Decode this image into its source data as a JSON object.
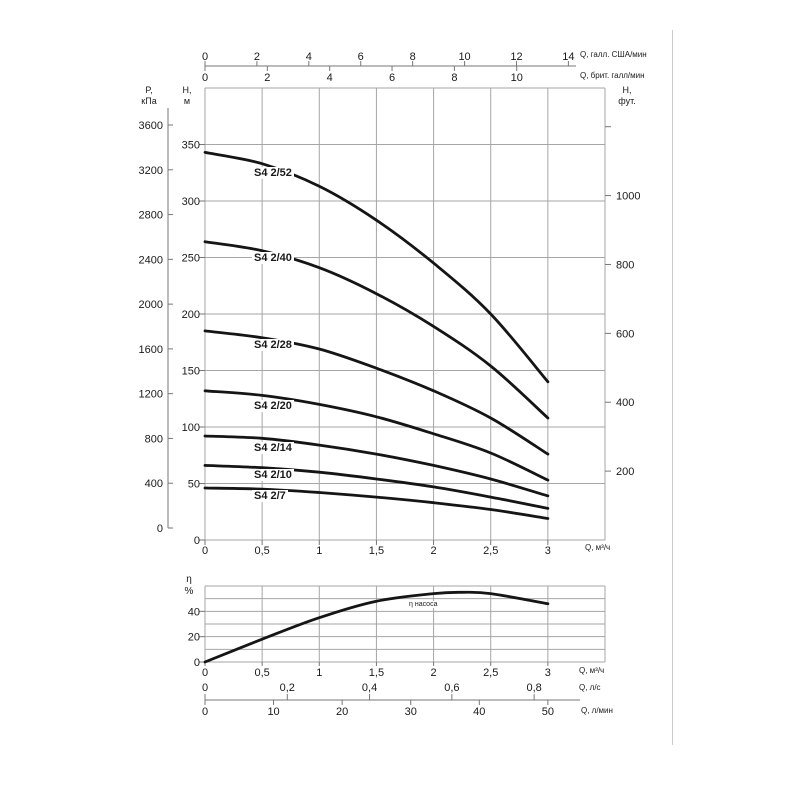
{
  "colors": {
    "curve": "#151515",
    "grid": "#a6a6a6",
    "axis": "#777777",
    "divider": "#cccccc",
    "text": "#1a1a1a"
  },
  "headers": {
    "kpa_line1": "P,",
    "kpa_line2": "кПа",
    "m_line1": "H,",
    "m_line2": "м",
    "ft_line1": "H,",
    "ft_line2": "фут.",
    "eta_line1": "η",
    "eta_line2": "%"
  },
  "annotations": {
    "eta_curve_label": "η насоса"
  },
  "chart_data": [
    {
      "type": "line",
      "name": "pump-head-curves",
      "x": [
        0,
        0.5,
        1,
        1.5,
        2,
        2.5,
        3
      ],
      "series": [
        {
          "name": "S4 2/52",
          "values": [
            343,
            333,
            313,
            283,
            245,
            200,
            140
          ]
        },
        {
          "name": "S4 2/40",
          "values": [
            264,
            256,
            241,
            218,
            189,
            154,
            108
          ]
        },
        {
          "name": "S4 2/28",
          "values": [
            185,
            179,
            169,
            152,
            132,
            108,
            76
          ]
        },
        {
          "name": "S4 2/20",
          "values": [
            132,
            128,
            120,
            109,
            94,
            77,
            53
          ]
        },
        {
          "name": "S4 2/14",
          "values": [
            92,
            90,
            84,
            76,
            66,
            54,
            39
          ]
        },
        {
          "name": "S4 2/10",
          "values": [
            66,
            64,
            60,
            54,
            47,
            38,
            28
          ]
        },
        {
          "name": "S4 2/7",
          "values": [
            46,
            45,
            42,
            38,
            33,
            27,
            19
          ]
        }
      ],
      "xlim": [
        0,
        3.5
      ],
      "ylim": [
        0,
        400
      ],
      "grid": {
        "x_step": 0.5,
        "y_step": 50
      },
      "axes": {
        "x_m3h": {
          "unit": "Q, м³/ч",
          "values": [
            0,
            0.5,
            1,
            1.5,
            2,
            2.5,
            3
          ],
          "labels": [
            "0",
            "0,5",
            "1",
            "1,5",
            "2",
            "2,5",
            "3"
          ]
        },
        "y_m": {
          "unit": "H, м",
          "values": [
            0,
            50,
            100,
            150,
            200,
            250,
            300,
            350
          ],
          "labels": [
            "0",
            "50",
            "100",
            "150",
            "200",
            "250",
            "300",
            "350"
          ]
        },
        "y_kpa": {
          "unit": "P, кПа",
          "values": [
            0,
            400,
            800,
            1200,
            1600,
            2000,
            2400,
            2800,
            3200,
            3600
          ],
          "labels": [
            "0",
            "400",
            "800",
            "1200",
            "1600",
            "2000",
            "2400",
            "2800",
            "3200",
            "3600"
          ]
        },
        "y_ft": {
          "unit": "H, фут.",
          "values": [
            200,
            400,
            600,
            800,
            1000
          ],
          "labels": [
            "200",
            "400",
            "600",
            "800",
            "1000"
          ],
          "extra_unlabeled_tick": 1200
        },
        "top_us": {
          "unit": "Q, галл. США/мин",
          "values": [
            0,
            2,
            4,
            6,
            8,
            10,
            12,
            14
          ],
          "labels": [
            "0",
            "2",
            "4",
            "6",
            "8",
            "10",
            "12",
            "14"
          ]
        },
        "top_imp": {
          "unit": "Q, брит. галл/мин",
          "values": [
            0,
            2,
            4,
            6,
            8,
            10
          ],
          "labels": [
            "0",
            "2",
            "4",
            "6",
            "8",
            "10"
          ]
        }
      }
    },
    {
      "type": "line",
      "name": "pump-efficiency-curve",
      "title": "η насоса",
      "x": [
        0,
        0.5,
        1,
        1.5,
        2,
        2.25,
        2.5,
        3
      ],
      "values": [
        0,
        18,
        35,
        48,
        54,
        55,
        54,
        46
      ],
      "xlim": [
        0,
        3.5
      ],
      "ylim": [
        0,
        60
      ],
      "grid": {
        "x_step": 0.5,
        "y_step": 10
      },
      "axes": {
        "y_eta": {
          "unit": "η %",
          "values": [
            0,
            20,
            40
          ],
          "labels": [
            "0",
            "20",
            "40"
          ]
        },
        "x_m3h": {
          "unit": "Q, м³/ч",
          "values": [
            0,
            0.5,
            1,
            1.5,
            2,
            2.5,
            3
          ],
          "labels": [
            "0",
            "0,5",
            "1",
            "1,5",
            "2",
            "2,5",
            "3"
          ]
        },
        "x_ls": {
          "unit": "Q, л/с",
          "values": [
            0,
            0.2,
            0.4,
            0.6,
            0.8
          ],
          "labels": [
            "0",
            "0,2",
            "0,4",
            "0,6",
            "0,8"
          ]
        },
        "x_lmin": {
          "unit": "Q, л/мин",
          "values": [
            0,
            10,
            20,
            30,
            40,
            50
          ],
          "labels": [
            "0",
            "10",
            "20",
            "30",
            "40",
            "50"
          ]
        }
      }
    }
  ]
}
